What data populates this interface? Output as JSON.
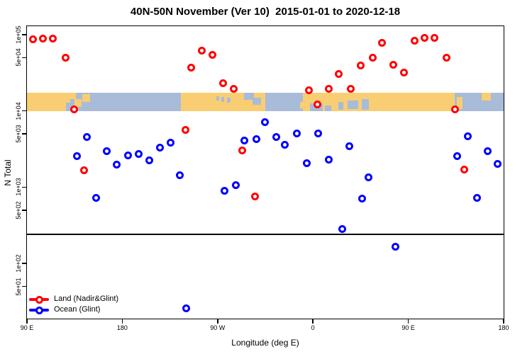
{
  "title": "40N-50N November (Ver 10)  2015-01-01 to 2020-12-18",
  "axes": {
    "x_label": "Longitude (deg E)",
    "y_label": "N Total",
    "x_ticks": [
      {
        "deg": 90,
        "label": "90 E"
      },
      {
        "deg": 180,
        "label": "180"
      },
      {
        "deg": 270,
        "label": "90 W"
      },
      {
        "deg": 360,
        "label": "0"
      },
      {
        "deg": 450,
        "label": "90 E"
      },
      {
        "deg": 540,
        "label": "180"
      }
    ],
    "y_ticks": [
      {
        "value": 100000,
        "label": "1e+05"
      },
      {
        "value": 50000,
        "label": "5e+04"
      },
      {
        "value": 10000,
        "label": "1e+04"
      },
      {
        "value": 5000,
        "label": "5e+03"
      },
      {
        "value": 1000,
        "label": "1e+03"
      },
      {
        "value": 500,
        "label": "5e+02"
      },
      {
        "value": 100,
        "label": "1e+02"
      },
      {
        "value": 50,
        "label": "5e+01"
      }
    ]
  },
  "legend": {
    "items": [
      {
        "label": "Land (Nadir&Glint)",
        "color": "#ff0000"
      },
      {
        "label": "Ocean (Glint)",
        "color": "#0000ff"
      }
    ]
  },
  "colors": {
    "land_marker": "#ff0000",
    "ocean_marker": "#0000ff",
    "map_land": "#f9ce72",
    "map_ocean": "#a8bbd8",
    "frame": "#000000"
  },
  "chart_data": {
    "type": "scatter",
    "title": "40N-50N November (Ver 10)  2015-01-01 to 2020-12-18",
    "xlabel": "Longitude (deg E)",
    "ylabel": "N Total",
    "x_axis_note": "x is longitude in degrees measured continuously eastward; axis runs 90E -> 180 -> 90W -> 0 -> 90E -> 180 (values 90 to 540, >360 wraps around)",
    "xlim": [
      90,
      540
    ],
    "ylim": [
      18.7,
      129300
    ],
    "y_scale": "log10",
    "threshold_line_y": 240,
    "map_band": {
      "value_top": 17500,
      "value_bottom": 10000,
      "segments": [
        {
          "from": 90,
          "to": 131,
          "type": "land"
        },
        {
          "from": 131,
          "to": 235,
          "type": "ocean"
        },
        {
          "from": 235,
          "to": 315,
          "type": "land"
        },
        {
          "from": 315,
          "to": 350.5,
          "type": "ocean"
        },
        {
          "from": 350.5,
          "to": 493.6,
          "type": "land"
        },
        {
          "from": 493.6,
          "to": 540,
          "type": "ocean"
        }
      ],
      "patches": [
        {
          "from": 131,
          "to": 136,
          "top": 0.0,
          "bottom": 0.35,
          "type": "land"
        },
        {
          "from": 135,
          "to": 141.5,
          "top": 0.35,
          "bottom": 0.8,
          "type": "land"
        },
        {
          "from": 142.5,
          "to": 149.5,
          "top": 0.1,
          "bottom": 0.5,
          "type": "land"
        },
        {
          "from": 127,
          "to": 131,
          "top": 0.55,
          "bottom": 1.0,
          "type": "ocean"
        },
        {
          "from": 268.5,
          "to": 271.5,
          "top": 0.2,
          "bottom": 0.45,
          "type": "ocean"
        },
        {
          "from": 273.5,
          "to": 276.5,
          "top": 0.25,
          "bottom": 0.5,
          "type": "ocean"
        },
        {
          "from": 279,
          "to": 282,
          "top": 0.3,
          "bottom": 0.55,
          "type": "ocean"
        },
        {
          "from": 295,
          "to": 304,
          "top": 0.0,
          "bottom": 0.4,
          "type": "ocean"
        },
        {
          "from": 303,
          "to": 311,
          "top": 0.3,
          "bottom": 0.65,
          "type": "ocean"
        },
        {
          "from": 347.5,
          "to": 350.5,
          "top": 0.5,
          "bottom": 0.85,
          "type": "land"
        },
        {
          "from": 357,
          "to": 369,
          "top": 0.6,
          "bottom": 1.0,
          "type": "ocean"
        },
        {
          "from": 371,
          "to": 377,
          "top": 0.7,
          "bottom": 1.0,
          "type": "ocean"
        },
        {
          "from": 384,
          "to": 389,
          "top": 0.5,
          "bottom": 0.95,
          "type": "ocean"
        },
        {
          "from": 393,
          "to": 402.5,
          "top": 0.45,
          "bottom": 0.9,
          "type": "ocean"
        },
        {
          "from": 406,
          "to": 413,
          "top": 0.35,
          "bottom": 0.95,
          "type": "ocean"
        },
        {
          "from": 496,
          "to": 501.5,
          "top": 0.25,
          "bottom": 0.9,
          "type": "land"
        },
        {
          "from": 519,
          "to": 528,
          "top": 0.0,
          "bottom": 0.45,
          "type": "land"
        }
      ]
    },
    "series": [
      {
        "name": "Land (Nadir&Glint)",
        "color": "#ff0000",
        "points": [
          [
            95.6,
            87000
          ],
          [
            105.2,
            88000
          ],
          [
            114.6,
            88000
          ],
          [
            126.2,
            50000
          ],
          [
            134.2,
            10400
          ],
          [
            143.6,
            1680
          ],
          [
            239.5,
            5600
          ],
          [
            244.9,
            37000
          ],
          [
            255.4,
            61500
          ],
          [
            264.8,
            54000
          ],
          [
            275.3,
            22900
          ],
          [
            285.1,
            19400
          ],
          [
            293.4,
            3020
          ],
          [
            305.1,
            750
          ],
          [
            356.5,
            18700
          ],
          [
            364.1,
            12200
          ],
          [
            375.0,
            19400
          ],
          [
            384.6,
            30800
          ],
          [
            395.5,
            19400
          ],
          [
            405.2,
            39600
          ],
          [
            416.6,
            50400
          ],
          [
            425.0,
            79000
          ],
          [
            435.7,
            40000
          ],
          [
            445.9,
            32000
          ],
          [
            455.8,
            84000
          ],
          [
            465.6,
            90500
          ],
          [
            474.5,
            90500
          ],
          [
            485.8,
            50000
          ],
          [
            493.8,
            10400
          ],
          [
            502.5,
            1710
          ]
        ]
      },
      {
        "name": "Ocean (Glint)",
        "color": "#0000ff",
        "points": [
          [
            137.1,
            2530
          ],
          [
            146.9,
            4600
          ],
          [
            155.2,
            720
          ],
          [
            165.5,
            2960
          ],
          [
            174.8,
            1970
          ],
          [
            185.5,
            2600
          ],
          [
            195.3,
            2740
          ],
          [
            205.8,
            2270
          ],
          [
            215.4,
            3270
          ],
          [
            225.4,
            3820
          ],
          [
            234.6,
            1450
          ],
          [
            240.0,
            25.5
          ],
          [
            276.8,
            890
          ],
          [
            287.5,
            1070
          ],
          [
            295.1,
            4080
          ],
          [
            306.5,
            4290
          ],
          [
            314.5,
            7060
          ],
          [
            325.5,
            4570
          ],
          [
            333.7,
            3580
          ],
          [
            344.6,
            5040
          ],
          [
            354.0,
            2070
          ],
          [
            365.2,
            5080
          ],
          [
            374.8,
            2320
          ],
          [
            387.9,
            284
          ],
          [
            394.6,
            3450
          ],
          [
            406.5,
            707
          ],
          [
            412.4,
            1360
          ],
          [
            437.7,
            166
          ],
          [
            496.0,
            2530
          ],
          [
            506.1,
            4630
          ],
          [
            515.2,
            730
          ],
          [
            524.8,
            3000
          ],
          [
            534.0,
            2010
          ]
        ]
      }
    ]
  }
}
